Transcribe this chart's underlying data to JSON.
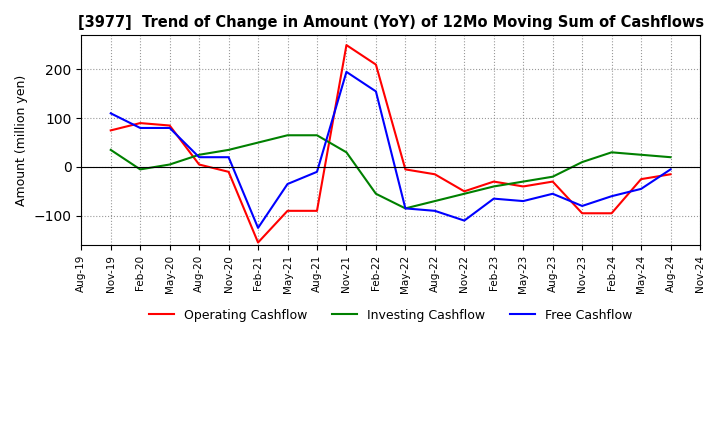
{
  "title": "[3977]  Trend of Change in Amount (YoY) of 12Mo Moving Sum of Cashflows",
  "ylabel": "Amount (million yen)",
  "x_labels": [
    "Aug-19",
    "Nov-19",
    "Feb-20",
    "May-20",
    "Aug-20",
    "Nov-20",
    "Feb-21",
    "May-21",
    "Aug-21",
    "Nov-21",
    "Feb-22",
    "May-22",
    "Aug-22",
    "Nov-22",
    "Feb-23",
    "May-23",
    "Aug-23",
    "Nov-23",
    "Feb-24",
    "May-24",
    "Aug-24",
    "Nov-24"
  ],
  "operating": [
    null,
    75,
    90,
    85,
    5,
    -10,
    -155,
    -90,
    -90,
    250,
    210,
    -5,
    -15,
    -50,
    -30,
    -40,
    -30,
    -95,
    -95,
    -25,
    -15,
    null
  ],
  "investing": [
    null,
    35,
    -5,
    5,
    25,
    35,
    50,
    65,
    65,
    30,
    -55,
    -85,
    -70,
    -55,
    -40,
    -30,
    -20,
    10,
    30,
    25,
    20,
    null
  ],
  "free": [
    null,
    110,
    80,
    80,
    20,
    20,
    -125,
    -35,
    -10,
    195,
    155,
    -85,
    -90,
    -110,
    -65,
    -70,
    -55,
    -80,
    -60,
    -45,
    -5,
    null
  ],
  "operating_color": "#ff0000",
  "investing_color": "#008000",
  "free_color": "#0000ff",
  "ylim": [
    -160,
    270
  ],
  "yticks": [
    -100,
    0,
    100,
    200
  ],
  "legend_labels": [
    "Operating Cashflow",
    "Investing Cashflow",
    "Free Cashflow"
  ]
}
